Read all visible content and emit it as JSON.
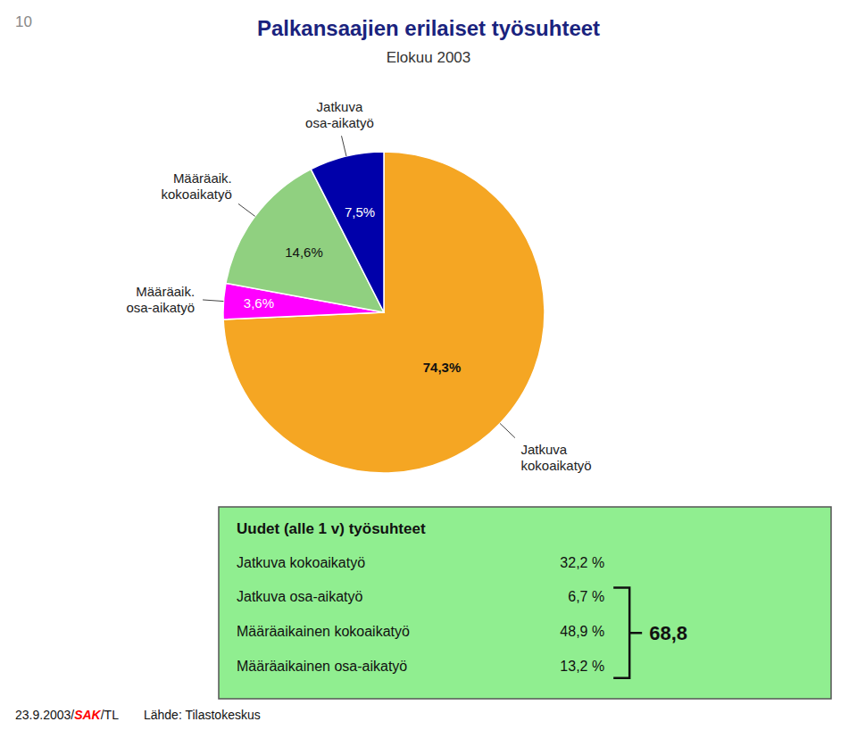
{
  "chart_data": [
    {
      "type": "pie",
      "title": "Palkansaajien erilaiset työsuhteet",
      "subtitle": "Elokuu 2003",
      "categories": [
        "Jatkuva\nkokoaikatyö",
        "Määräaik.\nosa-aikatyö",
        "Määräaik.\nkokoaikatyö",
        "Jatkuva\nosa-aikatyö"
      ],
      "values": [
        74.3,
        3.6,
        14.6,
        7.5
      ],
      "value_labels": [
        "74,3%",
        "3,6%",
        "14,6%",
        "7,5%"
      ],
      "colors": [
        "#F5A623",
        "#FF00FF",
        "#90D080",
        "#0000AA"
      ],
      "data_labels": true,
      "annotations": [
        {
          "text": "10"
        },
        {
          "text": "23.9.2003/"
        },
        {
          "text": "SAK",
          "color": "#FF0000"
        },
        {
          "text": "/TL"
        },
        {
          "text": "Lähde: Tilastokeskus"
        }
      ]
    },
    {
      "type": "table",
      "title": "Uudet (alle 1 v) työsuhteet",
      "categories": [
        "Jatkuva kokoaikatyö",
        "Jatkuva osa-aikatyö",
        "Määräaikainen kokoaikatyö",
        "Määräaikainen osa-aikatyö"
      ],
      "values": [
        32.2,
        6.7,
        48.9,
        13.2
      ],
      "value_labels": [
        "32,2 %",
        "6,7 %",
        "48,9 %",
        "13,2 %"
      ],
      "color": "#90EE90",
      "annotations": [
        {
          "text": "68,8"
        }
      ]
    }
  ]
}
